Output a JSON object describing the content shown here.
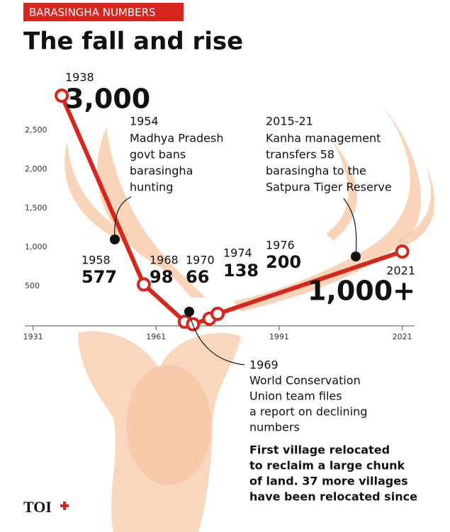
{
  "header": {
    "tag": "BARASINGHA NUMBERS",
    "title": "The fall and rise"
  },
  "chart_data": {
    "type": "line",
    "color": "#d7261e",
    "x": [
      1938,
      1958,
      1968,
      1970,
      1974,
      1976,
      2021
    ],
    "x_labels": [
      "1938",
      "1958",
      "1968",
      "1970",
      "1974",
      "1976",
      "2021"
    ],
    "values": [
      3000,
      577,
      98,
      66,
      138,
      200,
      1000
    ],
    "value_labels": [
      "3,000",
      "577",
      "98",
      "66",
      "138",
      "200",
      "1,000+"
    ],
    "xlim": [
      1929,
      2024
    ],
    "xticks": [
      1931,
      1961,
      1991,
      2021
    ],
    "ylim": [
      0,
      3000
    ],
    "yticks": [
      500,
      {
        "value": 1000,
        "label": "1,000"
      },
      {
        "value": 1500,
        "label": "1,500"
      },
      {
        "value": 2000,
        "label": "2,000"
      },
      {
        "value": 2500,
        "label": "2,500"
      }
    ],
    "annotations": [
      {
        "label": "1954",
        "text": [
          "Madhya Pradesh",
          "govt bans",
          "barasingha",
          "hunting"
        ]
      },
      {
        "label": "2015-21",
        "text": [
          "Kanha management",
          "transfers 58",
          "barasingha to the",
          "Satpura Tiger Reserve"
        ]
      },
      {
        "label": "1969",
        "text": [
          "World Conservation",
          "Union team files",
          "a report on declining",
          "numbers"
        ]
      },
      {
        "text": [
          "First village relocated",
          "to reclaim a large chunk",
          "of land. 37 more villages",
          "have been relocated since"
        ]
      }
    ]
  },
  "footer": {
    "logo": "TOI"
  }
}
